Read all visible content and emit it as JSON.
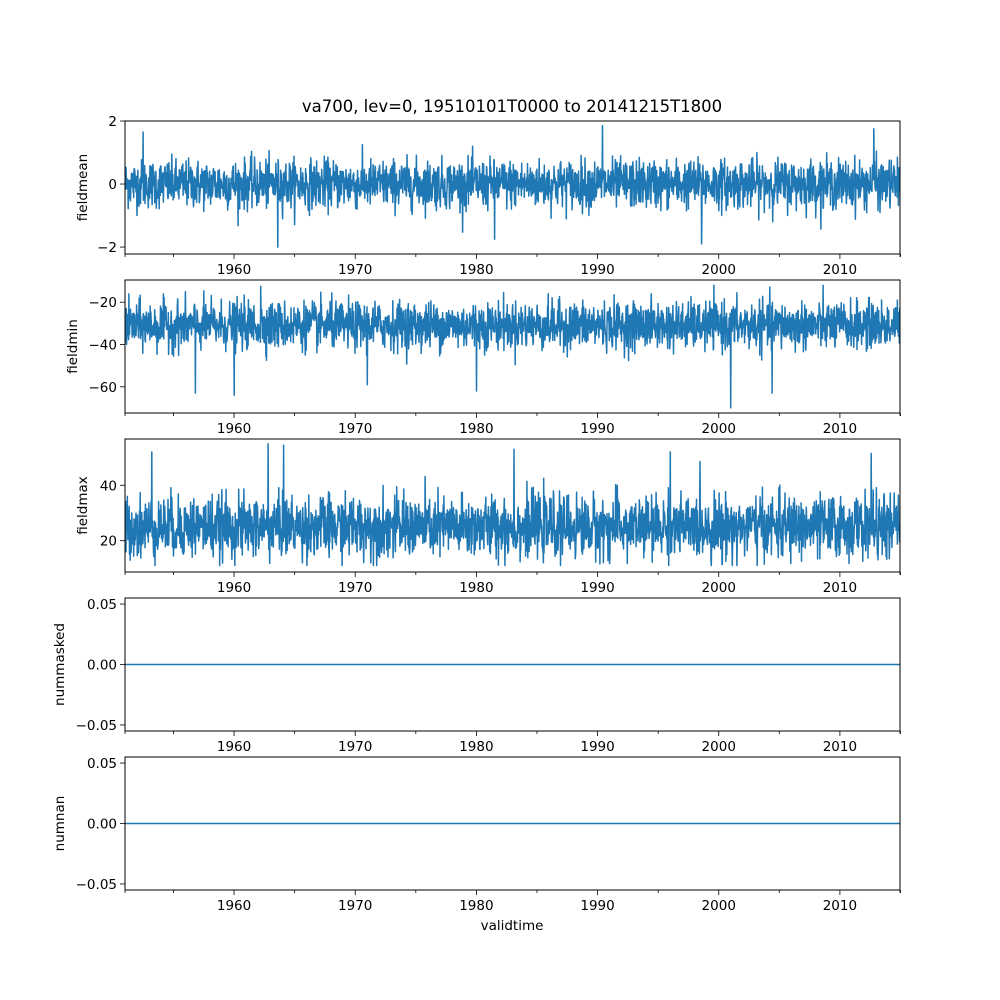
{
  "chart_data": {
    "type": "line",
    "title": "va700, lev=0, 19510101T0000 to 20141215T1800",
    "xlabel": "validtime",
    "xlim": [
      1951.0,
      2014.96
    ],
    "xticks": [
      1960,
      1970,
      1980,
      1990,
      2000,
      2010
    ],
    "xtick_labels": [
      "1960",
      "1970",
      "1980",
      "1990",
      "2000",
      "2010"
    ],
    "x_minor_step": 5,
    "color": "#1f77b4",
    "panels": [
      {
        "ylabel": "fieldmean",
        "ylim": [
          -2.22,
          2.0
        ],
        "yticks": [
          -2,
          0,
          2
        ],
        "ytick_labels": [
          "−2",
          "0",
          "2"
        ],
        "series": {
          "kind": "noise",
          "mean": 0.0,
          "std": 0.38,
          "min": -2.0,
          "max": 1.85,
          "extremes": [
            [
              1963.6,
              -2.0
            ],
            [
              1990.4,
              1.85
            ],
            [
              2012.8,
              1.75
            ],
            [
              1998.6,
              -1.9
            ],
            [
              1952.5,
              1.65
            ],
            [
              1981.5,
              -1.75
            ]
          ]
        }
      },
      {
        "ylabel": "fieldmin",
        "ylim": [
          -72.4,
          -9.5
        ],
        "yticks": [
          -60,
          -40,
          -20
        ],
        "ytick_labels": [
          "−60",
          "−40",
          "−20"
        ],
        "series": {
          "kind": "noise",
          "mean": -31,
          "std": 5.5,
          "min": -70,
          "max": -12,
          "extremes": [
            [
              2001.0,
              -70
            ],
            [
              1960.0,
              -64
            ],
            [
              1956.8,
              -63
            ],
            [
              1980.0,
              -62
            ],
            [
              2004.4,
              -63
            ],
            [
              1962.2,
              -12.5
            ],
            [
              1971.0,
              -59
            ]
          ]
        }
      },
      {
        "ylabel": "fieldmax",
        "ylim": [
          8.7,
          56.7
        ],
        "yticks": [
          20,
          40
        ],
        "ytick_labels": [
          "20",
          "40"
        ],
        "series": {
          "kind": "noise",
          "mean": 25,
          "std": 5.5,
          "min": 11,
          "max": 55,
          "extremes": [
            [
              1962.8,
              55
            ],
            [
              1964.1,
              54.5
            ],
            [
              1983.1,
              53
            ],
            [
              1953.2,
              52
            ],
            [
              1996.0,
              52
            ],
            [
              2012.6,
              51.5
            ],
            [
              2000.3,
              11.5
            ]
          ]
        }
      },
      {
        "ylabel": "nummasked",
        "ylim": [
          -0.055,
          0.055
        ],
        "yticks": [
          -0.05,
          0,
          0.05
        ],
        "ytick_labels": [
          "−0.05",
          "0.00",
          "0.05"
        ],
        "series": {
          "kind": "constant",
          "value": 0
        }
      },
      {
        "ylabel": "numnan",
        "ylim": [
          -0.055,
          0.055
        ],
        "yticks": [
          -0.05,
          0,
          0.05
        ],
        "ytick_labels": [
          "−0.05",
          "0.00",
          "0.05"
        ],
        "series": {
          "kind": "constant",
          "value": 0
        }
      }
    ]
  }
}
